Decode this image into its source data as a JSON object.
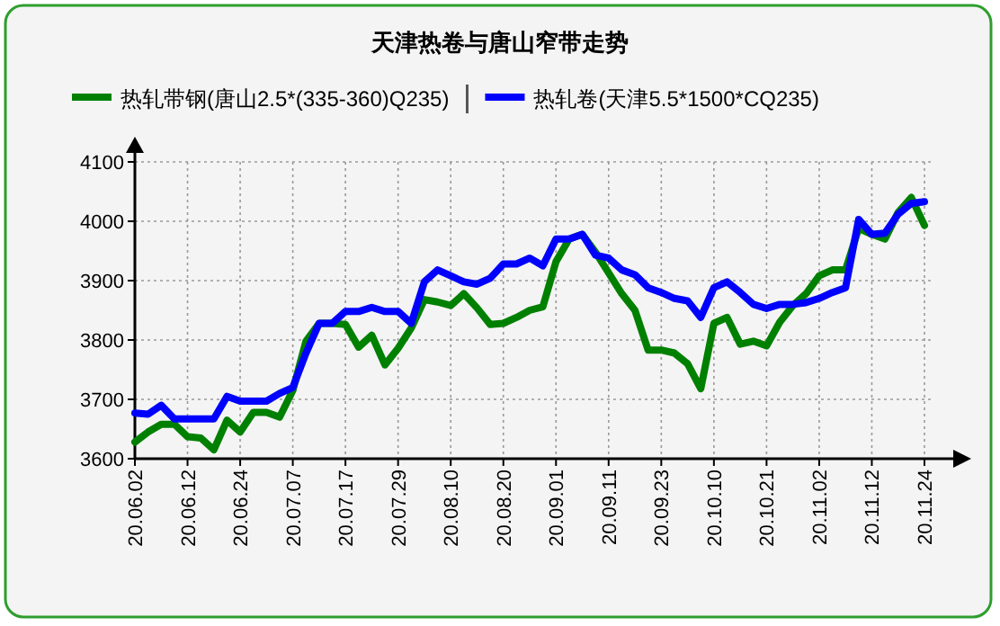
{
  "chart_data": {
    "type": "line",
    "title": "天津热卷与唐山窄带走势",
    "categories": [
      "20.06.02",
      null,
      null,
      null,
      "20.06.12",
      null,
      null,
      null,
      "20.06.24",
      null,
      null,
      null,
      "20.07.07",
      null,
      null,
      null,
      "20.07.17",
      null,
      null,
      null,
      "20.07.29",
      null,
      null,
      null,
      "20.08.10",
      null,
      null,
      null,
      "20.08.20",
      null,
      null,
      null,
      "20.09.01",
      null,
      null,
      null,
      "20.09.11",
      null,
      null,
      null,
      "20.09.23",
      null,
      null,
      null,
      "20.10.10",
      null,
      null,
      null,
      "20.10.21",
      null,
      null,
      null,
      "20.11.02",
      null,
      null,
      null,
      "20.11.12",
      null,
      null,
      null,
      "20.11.24"
    ],
    "series": [
      {
        "name": "热轧带钢(唐山2.5*(335-360)Q235)",
        "color": "#008000",
        "values": [
          3628,
          3645,
          3658,
          3658,
          3637,
          3635,
          3615,
          3665,
          3645,
          3678,
          3678,
          3670,
          3715,
          3798,
          3828,
          3828,
          3826,
          3788,
          3808,
          3758,
          3786,
          3820,
          3868,
          3864,
          3858,
          3878,
          3854,
          3826,
          3828,
          3838,
          3850,
          3856,
          3932,
          3970,
          3978,
          3948,
          3913,
          3878,
          3850,
          3783,
          3783,
          3778,
          3760,
          3718,
          3828,
          3838,
          3793,
          3798,
          3790,
          3830,
          3858,
          3878,
          3908,
          3918,
          3918,
          3988,
          3978,
          3970,
          4015,
          4040,
          3993
        ]
      },
      {
        "name": "热轧卷(天津5.5*1500*CQ235)",
        "color": "#0000ff",
        "values": [
          3677,
          3675,
          3690,
          3667,
          3667,
          3667,
          3667,
          3705,
          3697,
          3697,
          3697,
          3710,
          3720,
          3778,
          3828,
          3828,
          3848,
          3848,
          3855,
          3848,
          3848,
          3828,
          3898,
          3918,
          3908,
          3898,
          3894,
          3904,
          3928,
          3928,
          3938,
          3925,
          3970,
          3970,
          3978,
          3943,
          3938,
          3918,
          3910,
          3888,
          3880,
          3870,
          3866,
          3838,
          3888,
          3898,
          3880,
          3860,
          3853,
          3860,
          3860,
          3863,
          3870,
          3880,
          3888,
          4003,
          3978,
          3980,
          4012,
          4030,
          4033
        ]
      }
    ],
    "ylim": [
      3600,
      4100
    ],
    "yticks": [
      3600,
      3700,
      3800,
      3900,
      4000,
      4100
    ],
    "grid": true,
    "legend": "top"
  }
}
